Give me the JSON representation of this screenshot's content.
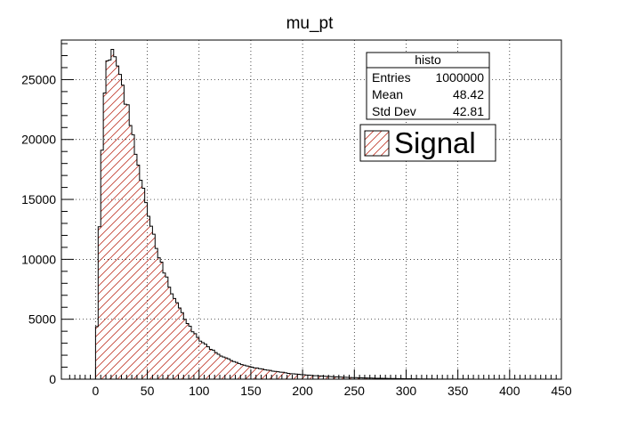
{
  "chart_data": {
    "type": "bar",
    "title": "mu_pt",
    "xlabel": "",
    "ylabel": "",
    "xlim": [
      -33,
      450
    ],
    "ylim": [
      0,
      28300
    ],
    "xticks": [
      0,
      50,
      100,
      150,
      200,
      250,
      300,
      350,
      400,
      450
    ],
    "yticks": [
      0,
      5000,
      10000,
      15000,
      20000,
      25000
    ],
    "grid": true,
    "bin_width": 2.5,
    "histogram_color": "#000000",
    "fill_pattern_color": "#c0392b",
    "stats_box": {
      "name": "histo",
      "rows": [
        {
          "label": "Entries",
          "value": "1000000"
        },
        {
          "label": "Mean",
          "value": "48.42"
        },
        {
          "label": "Std Dev",
          "value": "42.81"
        }
      ]
    },
    "legend": {
      "position": "top-right",
      "entries": [
        "Signal"
      ]
    },
    "curve_points": [
      [
        0,
        0
      ],
      [
        2.5,
        9000
      ],
      [
        5,
        16500
      ],
      [
        7.5,
        21800
      ],
      [
        10,
        25000
      ],
      [
        12.5,
        26900
      ],
      [
        15,
        27500
      ],
      [
        17.5,
        27700
      ],
      [
        20,
        26500
      ],
      [
        22.5,
        25100
      ],
      [
        25,
        25300
      ],
      [
        27.5,
        24200
      ],
      [
        30,
        22800
      ],
      [
        35,
        21000
      ],
      [
        40,
        18300
      ],
      [
        45,
        16200
      ],
      [
        50,
        14200
      ],
      [
        55,
        12300
      ],
      [
        60,
        10600
      ],
      [
        65,
        9400
      ],
      [
        70,
        8000
      ],
      [
        75,
        6900
      ],
      [
        80,
        6100
      ],
      [
        85,
        5200
      ],
      [
        90,
        4500
      ],
      [
        95,
        3900
      ],
      [
        100,
        3300
      ],
      [
        110,
        2600
      ],
      [
        120,
        2000
      ],
      [
        130,
        1600
      ],
      [
        140,
        1250
      ],
      [
        150,
        1000
      ],
      [
        170,
        700
      ],
      [
        190,
        450
      ],
      [
        210,
        300
      ],
      [
        230,
        200
      ],
      [
        250,
        130
      ],
      [
        270,
        80
      ],
      [
        290,
        50
      ],
      [
        310,
        25
      ],
      [
        330,
        12
      ],
      [
        350,
        6
      ],
      [
        380,
        3
      ],
      [
        410,
        1
      ],
      [
        440,
        0
      ]
    ]
  }
}
